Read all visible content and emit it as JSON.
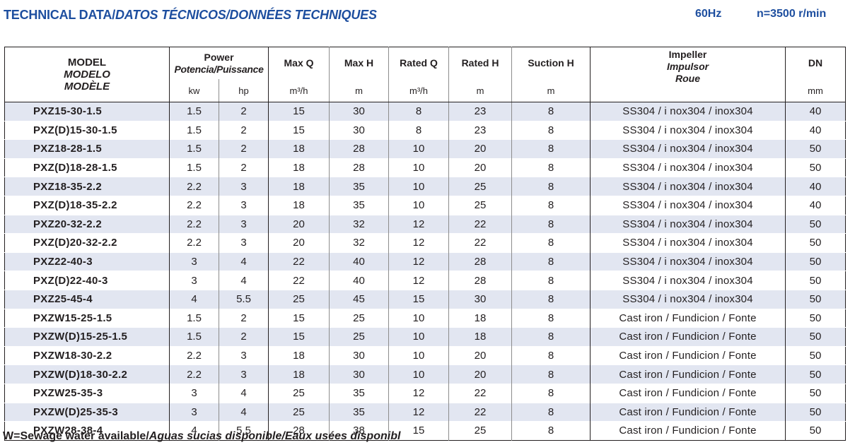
{
  "header": {
    "title_main": "TECHNICAL DATA/",
    "title_italic": "DATOS TÉCNICOS/DONNÉES TECHNIQUES",
    "frequency": "60Hz",
    "speed": "n=3500 r/min"
  },
  "columns": {
    "model": [
      "MODEL",
      "MODELO",
      "MODÈLE"
    ],
    "power": [
      "Power",
      "Potencia/Puissance"
    ],
    "power_units": [
      "kw",
      "hp"
    ],
    "max_q": "Max Q",
    "max_q_unit": "m³/h",
    "max_h": "Max H",
    "max_h_unit": "m",
    "rated_q": "Rated Q",
    "rated_q_unit": "m³/h",
    "rated_h": "Rated H",
    "rated_h_unit": "m",
    "suction_h": "Suction H",
    "suction_h_unit": "m",
    "impeller": [
      "Impeller",
      "Impulsor",
      "Roue"
    ],
    "dn": "DN",
    "dn_unit": "mm"
  },
  "rows": [
    [
      "PXZ15-30-1.5",
      "1.5",
      "2",
      "15",
      "30",
      "8",
      "23",
      "8",
      "SS304 / i nox304 / inox304",
      "40"
    ],
    [
      "PXZ(D)15-30-1.5",
      "1.5",
      "2",
      "15",
      "30",
      "8",
      "23",
      "8",
      "SS304 / i nox304 / inox304",
      "40"
    ],
    [
      "PXZ18-28-1.5",
      "1.5",
      "2",
      "18",
      "28",
      "10",
      "20",
      "8",
      "SS304 / i nox304 / inox304",
      "50"
    ],
    [
      "PXZ(D)18-28-1.5",
      "1.5",
      "2",
      "18",
      "28",
      "10",
      "20",
      "8",
      "SS304 / i nox304 / inox304",
      "50"
    ],
    [
      "PXZ18-35-2.2",
      "2.2",
      "3",
      "18",
      "35",
      "10",
      "25",
      "8",
      "SS304 / i nox304 / inox304",
      "40"
    ],
    [
      "PXZ(D)18-35-2.2",
      "2.2",
      "3",
      "18",
      "35",
      "10",
      "25",
      "8",
      "SS304 / i nox304 / inox304",
      "40"
    ],
    [
      "PXZ20-32-2.2",
      "2.2",
      "3",
      "20",
      "32",
      "12",
      "22",
      "8",
      "SS304 / i nox304 / inox304",
      "50"
    ],
    [
      "PXZ(D)20-32-2.2",
      "2.2",
      "3",
      "20",
      "32",
      "12",
      "22",
      "8",
      "SS304 / i nox304 / inox304",
      "50"
    ],
    [
      "PXZ22-40-3",
      "3",
      "4",
      "22",
      "40",
      "12",
      "28",
      "8",
      "SS304 / i nox304 / inox304",
      "50"
    ],
    [
      "PXZ(D)22-40-3",
      "3",
      "4",
      "22",
      "40",
      "12",
      "28",
      "8",
      "SS304 / i nox304 / inox304",
      "50"
    ],
    [
      "PXZ25-45-4",
      "4",
      "5.5",
      "25",
      "45",
      "15",
      "30",
      "8",
      "SS304 / i nox304 / inox304",
      "50"
    ],
    [
      "PXZW15-25-1.5",
      "1.5",
      "2",
      "15",
      "25",
      "10",
      "18",
      "8",
      "Cast iron / Fundicion / Fonte",
      "50"
    ],
    [
      "PXZW(D)15-25-1.5",
      "1.5",
      "2",
      "15",
      "25",
      "10",
      "18",
      "8",
      "Cast iron / Fundicion / Fonte",
      "50"
    ],
    [
      "PXZW18-30-2.2",
      "2.2",
      "3",
      "18",
      "30",
      "10",
      "20",
      "8",
      "Cast iron / Fundicion / Fonte",
      "50"
    ],
    [
      "PXZW(D)18-30-2.2",
      "2.2",
      "3",
      "18",
      "30",
      "10",
      "20",
      "8",
      "Cast iron / Fundicion / Fonte",
      "50"
    ],
    [
      "PXZW25-35-3",
      "3",
      "4",
      "25",
      "35",
      "12",
      "22",
      "8",
      "Cast iron / Fundicion / Fonte",
      "50"
    ],
    [
      "PXZW(D)25-35-3",
      "3",
      "4",
      "25",
      "35",
      "12",
      "22",
      "8",
      "Cast iron / Fundicion / Fonte",
      "50"
    ],
    [
      "PXZW28-38-4",
      "4",
      "5.5",
      "28",
      "38",
      "15",
      "25",
      "8",
      "Cast iron / Fundicion / Fonte",
      "50"
    ]
  ],
  "footer": {
    "note_main": "W=Sewage water available/",
    "note_italic": "Aguas sucias disponible/Eaux usées disponibl"
  },
  "colors": {
    "title_blue": "#1d4e9f",
    "row_shade": "#e2e6f1"
  }
}
